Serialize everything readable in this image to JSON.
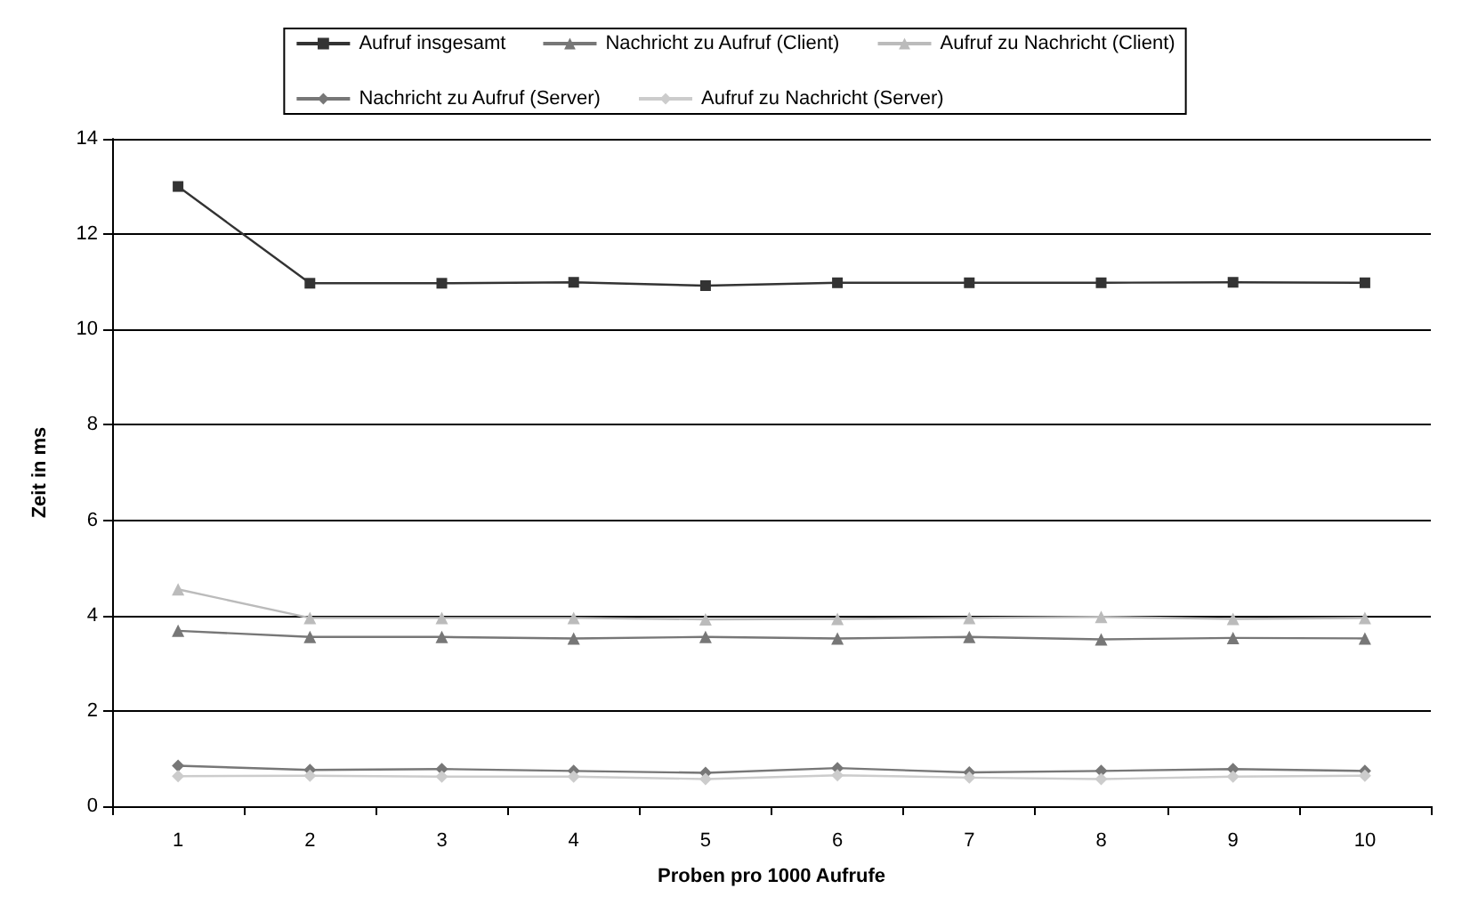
{
  "chart_data": {
    "type": "line",
    "xlabel": "Proben pro 1000 Aufrufe",
    "ylabel": "Zeit in ms",
    "categories": [
      "1",
      "2",
      "3",
      "4",
      "5",
      "6",
      "7",
      "8",
      "9",
      "10"
    ],
    "ylim": [
      0,
      14
    ],
    "yticks": [
      0,
      2,
      4,
      6,
      8,
      10,
      12,
      14
    ],
    "grid": "y",
    "legend": "top",
    "series": [
      {
        "name": "Aufruf insgesamt",
        "color": "#333333",
        "marker": "square",
        "values": [
          13,
          10.97,
          10.97,
          10.99,
          10.92,
          10.98,
          10.98,
          10.98,
          10.99,
          10.98
        ]
      },
      {
        "name": "Nachricht zu Aufruf (Client)",
        "color": "#777777",
        "marker": "triangle",
        "values": [
          3.68,
          3.55,
          3.55,
          3.52,
          3.55,
          3.52,
          3.55,
          3.5,
          3.53,
          3.52
        ]
      },
      {
        "name": "Aufruf zu Nachricht (Client)",
        "color": "#bbbbbb",
        "marker": "triangle",
        "values": [
          4.55,
          3.95,
          3.95,
          3.95,
          3.92,
          3.93,
          3.95,
          3.97,
          3.93,
          3.95
        ]
      },
      {
        "name": "Nachricht zu Aufruf (Server)",
        "color": "#777777",
        "marker": "diamond",
        "values": [
          0.85,
          0.76,
          0.78,
          0.74,
          0.7,
          0.8,
          0.71,
          0.74,
          0.78,
          0.74
        ]
      },
      {
        "name": "Aufruf zu Nachricht (Server)",
        "color": "#cccccc",
        "marker": "diamond",
        "values": [
          0.63,
          0.64,
          0.62,
          0.62,
          0.57,
          0.65,
          0.6,
          0.57,
          0.62,
          0.64
        ]
      }
    ]
  }
}
